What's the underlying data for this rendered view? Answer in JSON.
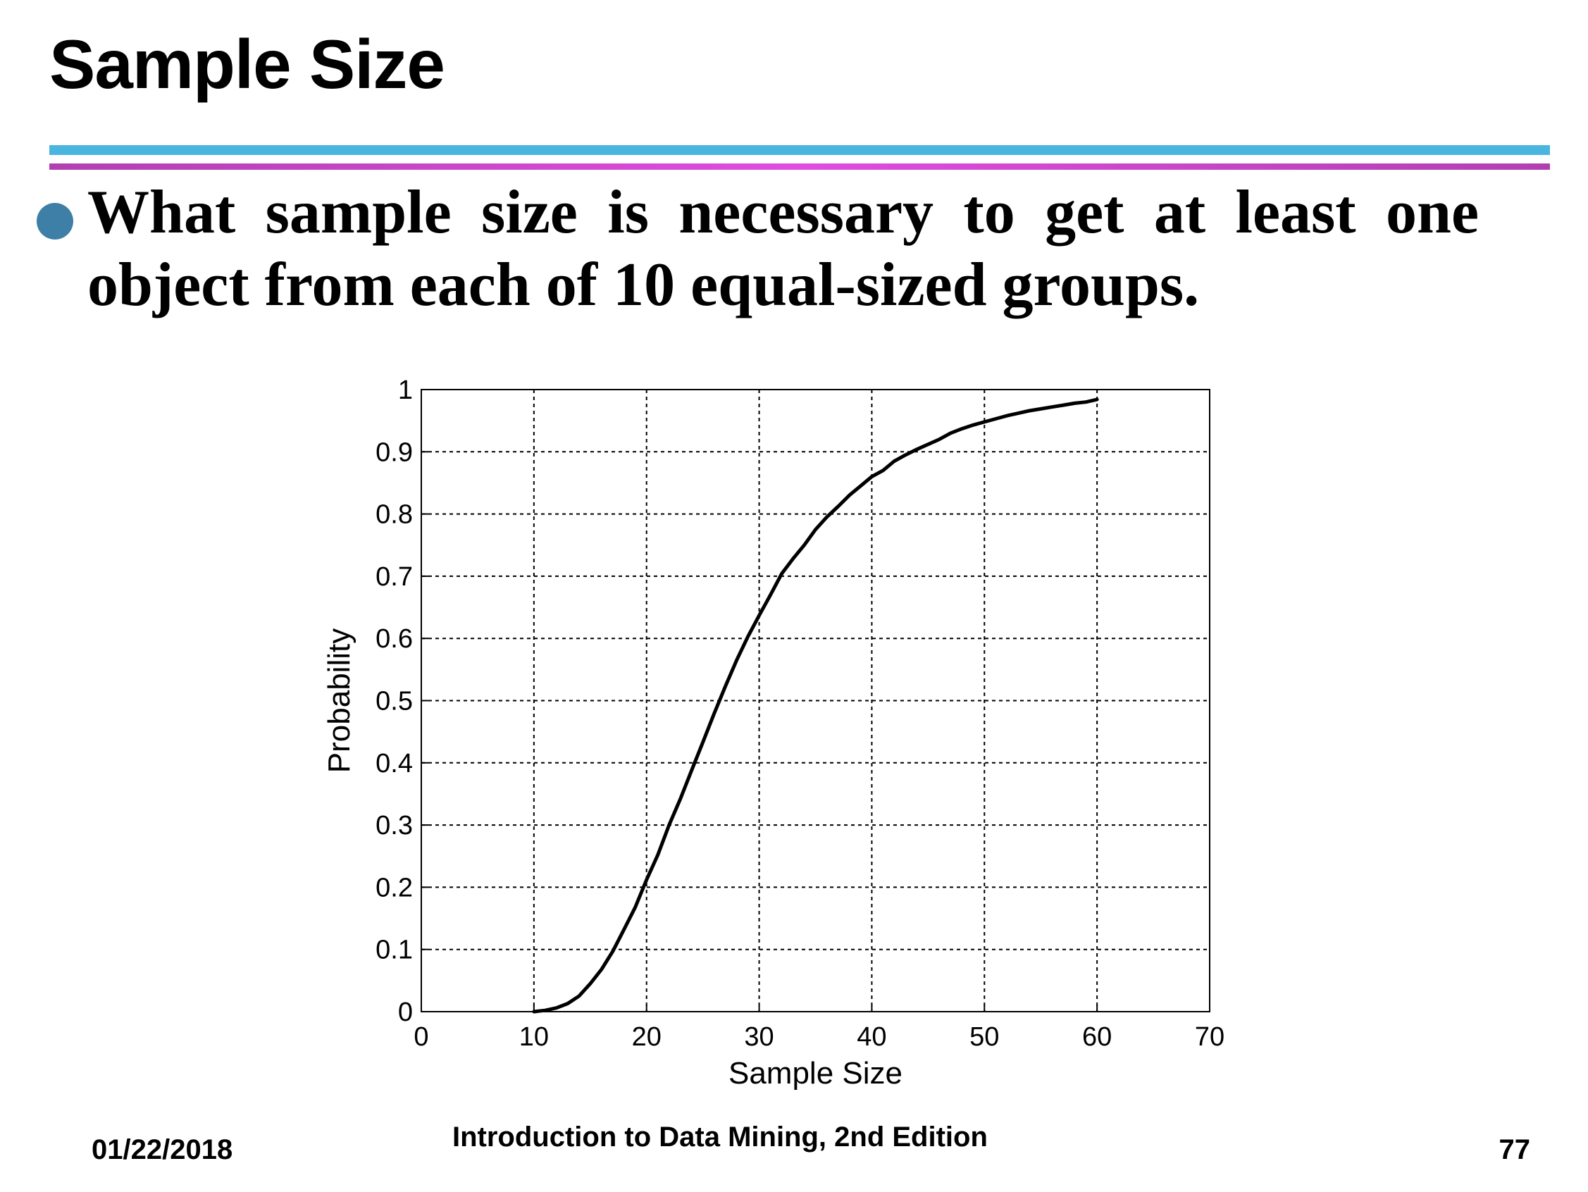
{
  "title": "Sample Size",
  "bullet": "What sample size is necessary to get at least one object from each of 10 equal-sized groups.",
  "footer": {
    "date": "01/22/2018",
    "book": "Introduction to Data Mining, 2nd Edition",
    "page": "77"
  },
  "colors": {
    "rule_top": "#4ab6df",
    "rule_bottom": "#d94ad9",
    "bullet": "#3d7fa6"
  },
  "chart_data": {
    "type": "line",
    "title": "",
    "xlabel": "Sample Size",
    "ylabel": "Probability",
    "xlim": [
      0,
      70
    ],
    "ylim": [
      0,
      1
    ],
    "xticks": [
      0,
      10,
      20,
      30,
      40,
      50,
      60,
      70
    ],
    "yticks": [
      0,
      0.1,
      0.2,
      0.3,
      0.4,
      0.5,
      0.6,
      0.7,
      0.8,
      0.9,
      1
    ],
    "ytick_labels": [
      "0",
      "0.1",
      "0.2",
      "0.3",
      "0.4",
      "0.5",
      "0.6",
      "0.7",
      "0.8",
      "0.9",
      "1"
    ],
    "grid": true,
    "series": [
      {
        "x": [
          10,
          11,
          12,
          13,
          14,
          15,
          16,
          17,
          18,
          19,
          20,
          21,
          22,
          23,
          24,
          25,
          26,
          27,
          28,
          29,
          30,
          31,
          32,
          33,
          34,
          35,
          36,
          37,
          38,
          39,
          40,
          41,
          42,
          43,
          44,
          45,
          46,
          47,
          48,
          49,
          50,
          51,
          52,
          53,
          54,
          55,
          56,
          57,
          58,
          59,
          60
        ],
        "values": [
          0.0,
          0.002,
          0.006,
          0.013,
          0.025,
          0.045,
          0.068,
          0.097,
          0.132,
          0.168,
          0.212,
          0.252,
          0.3,
          0.342,
          0.388,
          0.433,
          0.479,
          0.523,
          0.565,
          0.603,
          0.637,
          0.67,
          0.704,
          0.728,
          0.75,
          0.775,
          0.795,
          0.812,
          0.83,
          0.845,
          0.86,
          0.87,
          0.885,
          0.895,
          0.904,
          0.912,
          0.92,
          0.93,
          0.937,
          0.943,
          0.948,
          0.953,
          0.958,
          0.962,
          0.966,
          0.969,
          0.972,
          0.975,
          0.978,
          0.98,
          0.984
        ]
      }
    ]
  }
}
